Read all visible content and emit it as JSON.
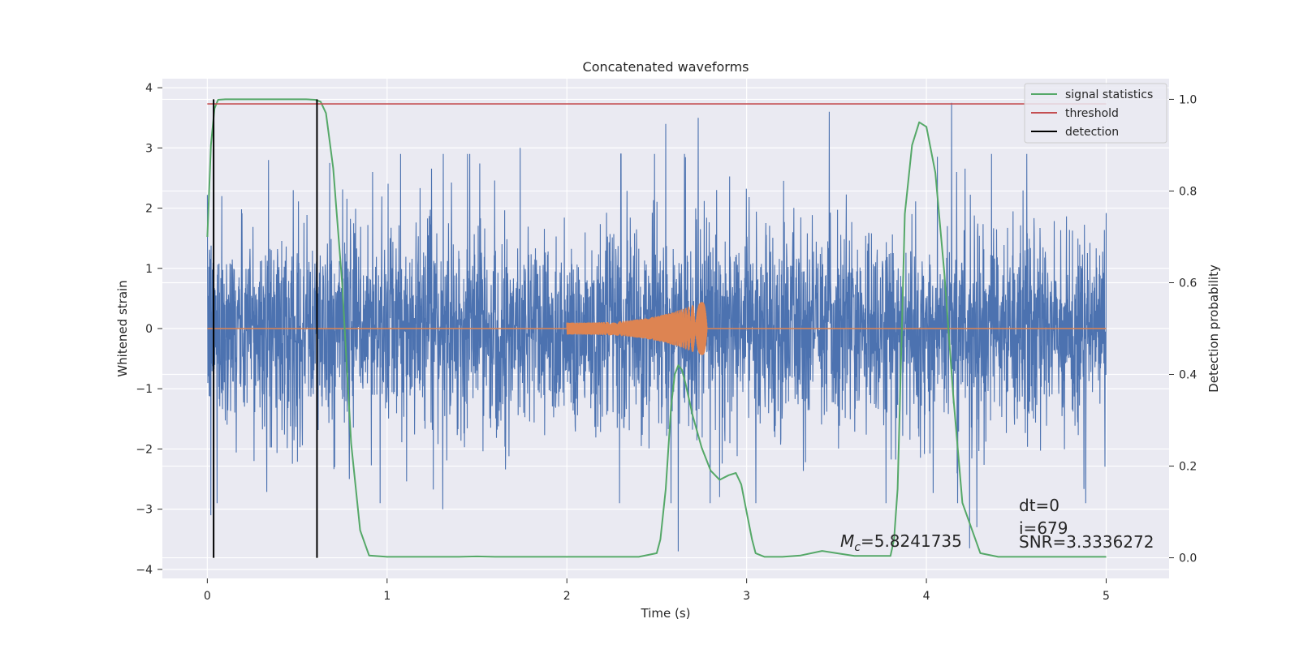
{
  "chart_data": {
    "type": "line",
    "title": "Concatenated waveforms",
    "xlabel": "Time (s)",
    "ylabel_left": "Whitened strain",
    "ylabel_right": "Detection probability",
    "xlim": [
      -0.25,
      5.35
    ],
    "ylim_left": [
      -4.15,
      4.15
    ],
    "ylim_right": [
      -0.045,
      1.045
    ],
    "xticks": [
      0,
      1,
      2,
      3,
      4,
      5
    ],
    "yticks_left": [
      -4,
      -3,
      -2,
      -1,
      0,
      1,
      2,
      3,
      4
    ],
    "yticks_right": [
      0.0,
      0.2,
      0.4,
      0.6,
      0.8,
      1.0
    ],
    "xtick_labels": [
      "0",
      "1",
      "2",
      "3",
      "4",
      "5"
    ],
    "ytick_labels_left": [
      "−4",
      "−3",
      "−2",
      "−1",
      "0",
      "1",
      "2",
      "3",
      "4"
    ],
    "ytick_labels_right": [
      "0.0",
      "0.2",
      "0.4",
      "0.6",
      "0.8",
      "1.0"
    ],
    "grid": true,
    "legend_position": "top-right",
    "colors": {
      "strain": "#4c72b0",
      "template": "#dd8452",
      "signal_statistics": "#55a868",
      "threshold": "#c44e52",
      "detection": "#000000",
      "background": "#eaeaf2",
      "grid": "#ffffff"
    },
    "series": [
      {
        "name": "signal statistics",
        "axis": "right",
        "x": [
          0,
          0.02,
          0.04,
          0.06,
          0.1,
          0.2,
          0.4,
          0.55,
          0.6,
          0.63,
          0.66,
          0.7,
          0.75,
          0.8,
          0.85,
          0.9,
          1.0,
          1.2,
          1.4,
          1.5,
          1.6,
          2.0,
          2.4,
          2.5,
          2.52,
          2.55,
          2.58,
          2.6,
          2.62,
          2.64,
          2.66,
          2.7,
          2.75,
          2.8,
          2.85,
          2.9,
          2.94,
          2.97,
          3.0,
          3.03,
          3.05,
          3.1,
          3.2,
          3.3,
          3.42,
          3.5,
          3.6,
          3.8,
          3.82,
          3.84,
          3.86,
          3.88,
          3.92,
          3.96,
          4.0,
          4.05,
          4.1,
          4.15,
          4.2,
          4.3,
          4.4,
          5.0
        ],
        "y": [
          0.7,
          0.9,
          0.98,
          0.999,
          1.0,
          1.0,
          1.0,
          1.0,
          0.999,
          0.995,
          0.97,
          0.85,
          0.6,
          0.25,
          0.06,
          0.005,
          0.002,
          0.002,
          0.002,
          0.003,
          0.002,
          0.002,
          0.002,
          0.01,
          0.04,
          0.15,
          0.33,
          0.4,
          0.42,
          0.41,
          0.38,
          0.31,
          0.24,
          0.19,
          0.17,
          0.18,
          0.185,
          0.16,
          0.1,
          0.04,
          0.01,
          0.002,
          0.002,
          0.005,
          0.015,
          0.01,
          0.004,
          0.004,
          0.04,
          0.15,
          0.45,
          0.75,
          0.9,
          0.95,
          0.94,
          0.84,
          0.62,
          0.35,
          0.12,
          0.01,
          0.002,
          0.002
        ]
      },
      {
        "name": "threshold",
        "axis": "right",
        "x": [
          0,
          5
        ],
        "y": [
          0.99,
          0.99
        ]
      },
      {
        "name": "detection",
        "axis": "right",
        "segments": [
          {
            "x": 0.035,
            "y": [
              0.0,
              1.0
            ]
          },
          {
            "x": 0.61,
            "y": [
              0.0,
              1.0
            ]
          }
        ]
      }
    ],
    "strain_envelope": {
      "axis": "left",
      "x_range": [
        0,
        5
      ],
      "typical_amplitude": 1.3,
      "peak_spikes": [
        {
          "x": 0.02,
          "y": -3.1
        },
        {
          "x": 0.08,
          "y": 2.2
        },
        {
          "x": 0.26,
          "y": -2.2
        },
        {
          "x": 0.34,
          "y": 2.8
        },
        {
          "x": 0.68,
          "y": 2.75
        },
        {
          "x": 0.79,
          "y": -2.5
        },
        {
          "x": 0.92,
          "y": 2.6
        },
        {
          "x": 1.31,
          "y": -3.0
        },
        {
          "x": 1.74,
          "y": 3.0
        },
        {
          "x": 2.55,
          "y": 3.4
        },
        {
          "x": 2.62,
          "y": -3.7
        },
        {
          "x": 2.73,
          "y": 3.5
        },
        {
          "x": 2.85,
          "y": -2.8
        },
        {
          "x": 3.46,
          "y": 3.6
        },
        {
          "x": 4.14,
          "y": 3.75
        },
        {
          "x": 4.24,
          "y": -3.65
        },
        {
          "x": 4.28,
          "y": -3.3
        }
      ]
    },
    "template_chirp": {
      "axis": "left",
      "x_range": [
        2.0,
        2.78
      ],
      "amplitude_start": 0.1,
      "amplitude_end": 0.5
    },
    "annotations": [
      {
        "id": "mc",
        "symbol": "M",
        "subscript": "c",
        "text": "=5.8241735"
      },
      {
        "id": "dt",
        "text": "dt=0"
      },
      {
        "id": "i",
        "text": "i=679"
      },
      {
        "id": "snr",
        "text": "SNR=3.3336272"
      }
    ]
  }
}
